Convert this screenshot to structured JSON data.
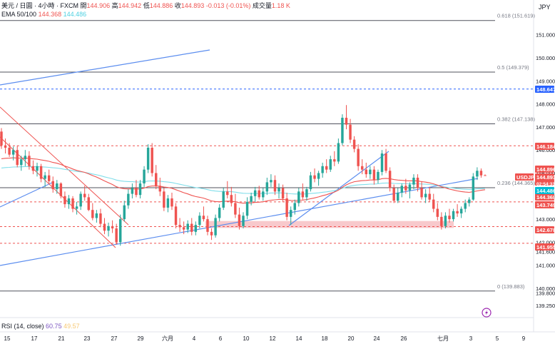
{
  "header": {
    "symbol_line": "美元 / 日圓 · 4小時 · FXCM",
    "open_label": "開",
    "open": "144.906",
    "high_label": "高",
    "high": "144.942",
    "low_label": "低",
    "low": "144.886",
    "close_label": "收",
    "close": "144.893",
    "change": "-0.013 (-0.01%)",
    "volume_label": "成交量",
    "volume": "1.18 K",
    "ema_label": "EMA 50/100",
    "ema50": "144.368",
    "ema100": "144.486",
    "currency": "JPY"
  },
  "rsi": {
    "label": "RSI (14, close)",
    "v1": "60.75",
    "v2": "49.57"
  },
  "colors": {
    "up": "#26a69a",
    "down": "#ef5350",
    "ema50": "#ef5350",
    "ema100": "#80deea",
    "trend": "#5b8def",
    "level_red": "#ef5350",
    "level_blue": "#2962ff",
    "fib": "#787b86",
    "zone": "#f8c9cc",
    "channel": "#ef5350"
  },
  "chart_data": {
    "type": "candlestick",
    "symbol": "USDJPY",
    "ylim": [
      139.25,
      151.95
    ],
    "y_ticks": [
      "151.000",
      "150.000",
      "149.000",
      "148.000",
      "147.000",
      "146.000",
      "145.000",
      "144.000",
      "143.000",
      "142.000",
      "141.600",
      "141.000",
      "140.000",
      "139.800",
      "139.250"
    ],
    "x_ticks": [
      "15",
      "17",
      "21",
      "23",
      "27",
      "29",
      "六月",
      "4",
      "6",
      "10",
      "12",
      "14",
      "18",
      "20",
      "24",
      "26",
      "七月",
      "3",
      "5",
      "9"
    ],
    "candles": [
      [
        146.8,
        146.95,
        146.05,
        146.2
      ],
      [
        146.2,
        146.5,
        145.85,
        146.1
      ],
      [
        146.1,
        146.3,
        145.7,
        145.8
      ],
      [
        145.8,
        146.15,
        145.55,
        146.0
      ],
      [
        146.0,
        146.2,
        145.25,
        145.35
      ],
      [
        145.35,
        145.75,
        145.1,
        145.6
      ],
      [
        145.6,
        146.0,
        145.3,
        145.75
      ],
      [
        145.75,
        145.95,
        145.15,
        145.3
      ],
      [
        145.3,
        145.55,
        144.95,
        145.1
      ],
      [
        145.1,
        145.45,
        144.85,
        145.3
      ],
      [
        145.3,
        145.4,
        144.6,
        144.75
      ],
      [
        144.75,
        145.05,
        144.4,
        144.9
      ],
      [
        144.9,
        145.15,
        144.55,
        144.65
      ],
      [
        144.65,
        144.85,
        144.15,
        144.3
      ],
      [
        144.3,
        144.7,
        144.1,
        144.55
      ],
      [
        144.55,
        144.6,
        143.9,
        144.0
      ],
      [
        144.0,
        144.2,
        143.5,
        143.65
      ],
      [
        143.65,
        144.05,
        143.45,
        143.9
      ],
      [
        143.9,
        144.0,
        143.3,
        143.45
      ],
      [
        143.45,
        143.75,
        143.2,
        143.55
      ],
      [
        143.55,
        144.2,
        143.4,
        144.1
      ],
      [
        144.1,
        144.45,
        143.8,
        143.95
      ],
      [
        143.95,
        144.1,
        143.35,
        143.4
      ],
      [
        143.4,
        143.7,
        142.95,
        143.05
      ],
      [
        143.05,
        143.4,
        142.85,
        143.25
      ],
      [
        143.25,
        143.45,
        142.65,
        142.8
      ],
      [
        142.8,
        143.05,
        142.35,
        142.5
      ],
      [
        142.5,
        142.85,
        142.25,
        142.7
      ],
      [
        142.7,
        142.95,
        142.4,
        142.6
      ],
      [
        142.6,
        142.8,
        141.9,
        142.0
      ],
      [
        142.0,
        143.2,
        141.85,
        143.0
      ],
      [
        143.0,
        143.8,
        142.9,
        143.6
      ],
      [
        143.6,
        144.3,
        143.45,
        144.1
      ],
      [
        144.1,
        144.55,
        143.9,
        144.35
      ],
      [
        144.35,
        144.7,
        143.95,
        144.05
      ],
      [
        144.05,
        144.7,
        143.9,
        144.55
      ],
      [
        144.55,
        145.3,
        144.4,
        145.15
      ],
      [
        145.15,
        146.25,
        145.0,
        146.1
      ],
      [
        146.1,
        146.3,
        144.85,
        145.0
      ],
      [
        145.0,
        145.35,
        144.3,
        144.45
      ],
      [
        144.45,
        144.8,
        144.0,
        144.2
      ],
      [
        144.2,
        144.35,
        143.35,
        143.5
      ],
      [
        143.5,
        144.05,
        143.3,
        143.9
      ],
      [
        143.9,
        144.15,
        143.4,
        143.55
      ],
      [
        143.55,
        143.7,
        142.6,
        142.75
      ],
      [
        142.75,
        143.05,
        142.45,
        142.65
      ],
      [
        142.65,
        142.9,
        142.35,
        142.55
      ],
      [
        142.55,
        142.95,
        142.4,
        142.8
      ],
      [
        142.8,
        143.05,
        142.3,
        142.45
      ],
      [
        142.45,
        142.9,
        142.3,
        142.75
      ],
      [
        142.75,
        143.3,
        142.6,
        143.15
      ],
      [
        143.15,
        143.55,
        142.9,
        143.0
      ],
      [
        143.0,
        143.15,
        142.3,
        142.45
      ],
      [
        142.45,
        142.6,
        142.1,
        142.3
      ],
      [
        142.3,
        143.2,
        142.2,
        143.05
      ],
      [
        143.05,
        143.65,
        142.9,
        143.5
      ],
      [
        143.5,
        144.35,
        143.4,
        144.2
      ],
      [
        144.2,
        144.65,
        143.9,
        144.05
      ],
      [
        144.05,
        144.4,
        143.55,
        143.7
      ],
      [
        143.7,
        144.1,
        143.05,
        143.2
      ],
      [
        143.2,
        143.5,
        142.55,
        142.7
      ],
      [
        142.7,
        143.3,
        142.6,
        143.15
      ],
      [
        143.15,
        143.95,
        143.0,
        143.75
      ],
      [
        143.75,
        144.15,
        143.6,
        144.0
      ],
      [
        144.0,
        144.4,
        143.75,
        144.25
      ],
      [
        144.25,
        144.45,
        143.85,
        143.95
      ],
      [
        143.95,
        144.35,
        143.8,
        144.2
      ],
      [
        144.2,
        144.8,
        144.05,
        144.6
      ],
      [
        144.6,
        144.95,
        144.4,
        144.7
      ],
      [
        144.7,
        144.9,
        144.05,
        144.2
      ],
      [
        144.2,
        144.55,
        143.9,
        144.35
      ],
      [
        144.35,
        144.5,
        143.75,
        143.9
      ],
      [
        143.9,
        144.15,
        142.95,
        143.1
      ],
      [
        143.1,
        143.55,
        142.75,
        143.4
      ],
      [
        143.4,
        143.85,
        143.2,
        143.7
      ],
      [
        143.7,
        144.35,
        143.55,
        144.2
      ],
      [
        144.2,
        144.55,
        143.85,
        143.95
      ],
      [
        143.95,
        144.4,
        143.8,
        144.3
      ],
      [
        144.3,
        145.05,
        144.2,
        144.9
      ],
      [
        144.9,
        145.2,
        144.6,
        144.75
      ],
      [
        144.75,
        145.1,
        144.45,
        145.0
      ],
      [
        145.0,
        145.45,
        144.8,
        145.3
      ],
      [
        145.3,
        145.6,
        145.0,
        145.15
      ],
      [
        145.15,
        145.75,
        145.05,
        145.6
      ],
      [
        145.6,
        145.95,
        145.3,
        145.5
      ],
      [
        145.5,
        146.5,
        145.4,
        146.3
      ],
      [
        146.3,
        147.55,
        146.2,
        147.4
      ],
      [
        147.4,
        147.95,
        146.9,
        147.1
      ],
      [
        147.1,
        147.35,
        146.3,
        146.45
      ],
      [
        146.45,
        146.6,
        145.9,
        146.05
      ],
      [
        146.05,
        146.25,
        145.1,
        145.3
      ],
      [
        145.3,
        145.6,
        144.95,
        145.15
      ],
      [
        145.15,
        145.45,
        144.8,
        144.95
      ],
      [
        144.95,
        145.3,
        144.75,
        145.15
      ],
      [
        145.15,
        145.3,
        144.5,
        144.7
      ],
      [
        144.7,
        145.15,
        144.55,
        145.05
      ],
      [
        145.05,
        146.0,
        144.9,
        145.85
      ],
      [
        145.85,
        146.05,
        145.0,
        145.1
      ],
      [
        145.1,
        145.25,
        144.2,
        144.35
      ],
      [
        144.35,
        144.5,
        143.7,
        143.8
      ],
      [
        143.8,
        144.35,
        143.7,
        144.15
      ],
      [
        144.15,
        144.55,
        143.95,
        144.45
      ],
      [
        144.45,
        144.75,
        144.1,
        144.25
      ],
      [
        144.25,
        144.6,
        143.9,
        144.5
      ],
      [
        144.5,
        144.95,
        144.3,
        144.8
      ],
      [
        144.8,
        144.95,
        144.2,
        144.35
      ],
      [
        144.35,
        144.65,
        143.85,
        143.95
      ],
      [
        143.95,
        144.3,
        143.7,
        144.1
      ],
      [
        144.1,
        144.4,
        143.75,
        143.85
      ],
      [
        143.85,
        144.1,
        143.3,
        143.45
      ],
      [
        143.45,
        143.7,
        142.95,
        143.1
      ],
      [
        143.1,
        143.3,
        142.55,
        142.7
      ],
      [
        142.7,
        143.3,
        142.6,
        143.15
      ],
      [
        143.15,
        143.45,
        142.85,
        143.0
      ],
      [
        143.0,
        143.45,
        142.9,
        143.35
      ],
      [
        143.35,
        143.65,
        143.1,
        143.25
      ],
      [
        143.25,
        143.55,
        143.05,
        143.45
      ],
      [
        143.45,
        143.85,
        143.3,
        143.7
      ],
      [
        143.7,
        143.95,
        143.55,
        143.85
      ],
      [
        143.85,
        145.0,
        143.8,
        144.85
      ],
      [
        144.85,
        145.25,
        144.7,
        145.1
      ],
      [
        145.1,
        145.2,
        144.8,
        144.9
      ],
      [
        144.906,
        144.942,
        144.886,
        144.893
      ]
    ],
    "price_labels": [
      {
        "text": "148.647",
        "value": 148.647,
        "color": "#2962ff"
      },
      {
        "text": "146.184",
        "value": 146.184,
        "color": "#ef5350"
      },
      {
        "text": "144.896",
        "value": 144.896,
        "color": "#ef5350"
      },
      {
        "text": "USDJPY",
        "value": 145.3,
        "color": "#ef5350"
      },
      {
        "text": "144.893",
        "value": 144.893,
        "color": "#ef5350"
      },
      {
        "text": "02:54:33",
        "value": 144.893,
        "color": "#ef5350"
      },
      {
        "text": "144.368",
        "value": 144.368,
        "color": "#ef5350"
      },
      {
        "text": "144.486",
        "value": 144.486,
        "color": "#00bcd4"
      },
      {
        "text": "143.749",
        "value": 143.749,
        "color": "#ef5350"
      },
      {
        "text": "142.678",
        "value": 142.678,
        "color": "#ef5350"
      },
      {
        "text": "141.955",
        "value": 141.955,
        "color": "#ef5350"
      }
    ],
    "fib_levels": [
      {
        "label": "0.618 (151.619)",
        "value": 151.619
      },
      {
        "label": "0.5 (149.379)",
        "value": 149.379
      },
      {
        "label": "0.382 (147.138)",
        "value": 147.138
      },
      {
        "label": "0.236 (144.365)",
        "value": 144.365
      },
      {
        "label": "0 (139.883)",
        "value": 139.883
      }
    ],
    "horizontal_levels": [
      {
        "value": 148.647,
        "color": "#2962ff"
      },
      {
        "value": 146.184,
        "color": "#ef5350"
      },
      {
        "value": 143.749,
        "color": "#ef5350"
      },
      {
        "value": 142.678,
        "color": "#ef5350"
      },
      {
        "value": 141.955,
        "color": "#ef5350"
      }
    ],
    "zone": {
      "top": 142.92,
      "bottom": 142.62
    }
  }
}
